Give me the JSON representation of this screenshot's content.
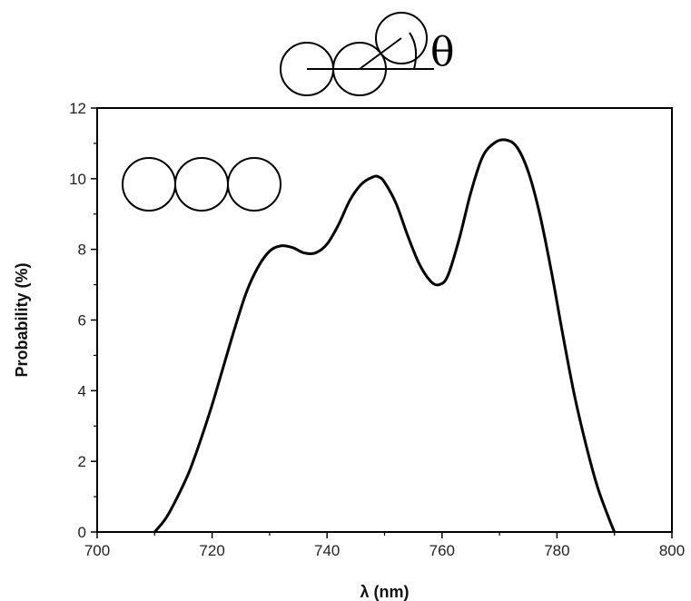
{
  "chart_data": {
    "type": "line",
    "title": "",
    "xlabel": "λ (nm)",
    "ylabel": "Probability (%)",
    "xlim": [
      700,
      800
    ],
    "ylim": [
      0,
      12
    ],
    "x_ticks": [
      700,
      720,
      740,
      760,
      780,
      800
    ],
    "y_ticks": [
      0,
      2,
      4,
      6,
      8,
      10,
      12
    ],
    "grid": false,
    "series": [
      {
        "color": "#000000",
        "x": [
          710,
          712,
          714,
          716,
          718,
          720,
          722,
          724,
          726,
          728,
          730,
          732,
          734,
          736,
          738,
          740,
          742,
          744,
          746,
          748,
          749,
          750,
          752,
          754,
          756,
          758,
          759.5,
          761,
          763,
          765,
          767,
          769,
          771,
          773,
          775,
          777,
          779,
          781,
          783,
          785,
          787,
          789,
          790
        ],
        "y": [
          0.0,
          0.4,
          1.0,
          1.7,
          2.6,
          3.6,
          4.7,
          5.8,
          6.8,
          7.5,
          7.95,
          8.1,
          8.05,
          7.9,
          7.9,
          8.15,
          8.7,
          9.4,
          9.85,
          10.05,
          10.05,
          9.9,
          9.3,
          8.4,
          7.6,
          7.1,
          7.0,
          7.25,
          8.3,
          9.6,
          10.6,
          11.0,
          11.1,
          10.9,
          10.2,
          9.0,
          7.4,
          5.6,
          3.9,
          2.5,
          1.3,
          0.4,
          0.0
        ]
      }
    ]
  },
  "annotations": {
    "theta_symbol": "θ"
  }
}
